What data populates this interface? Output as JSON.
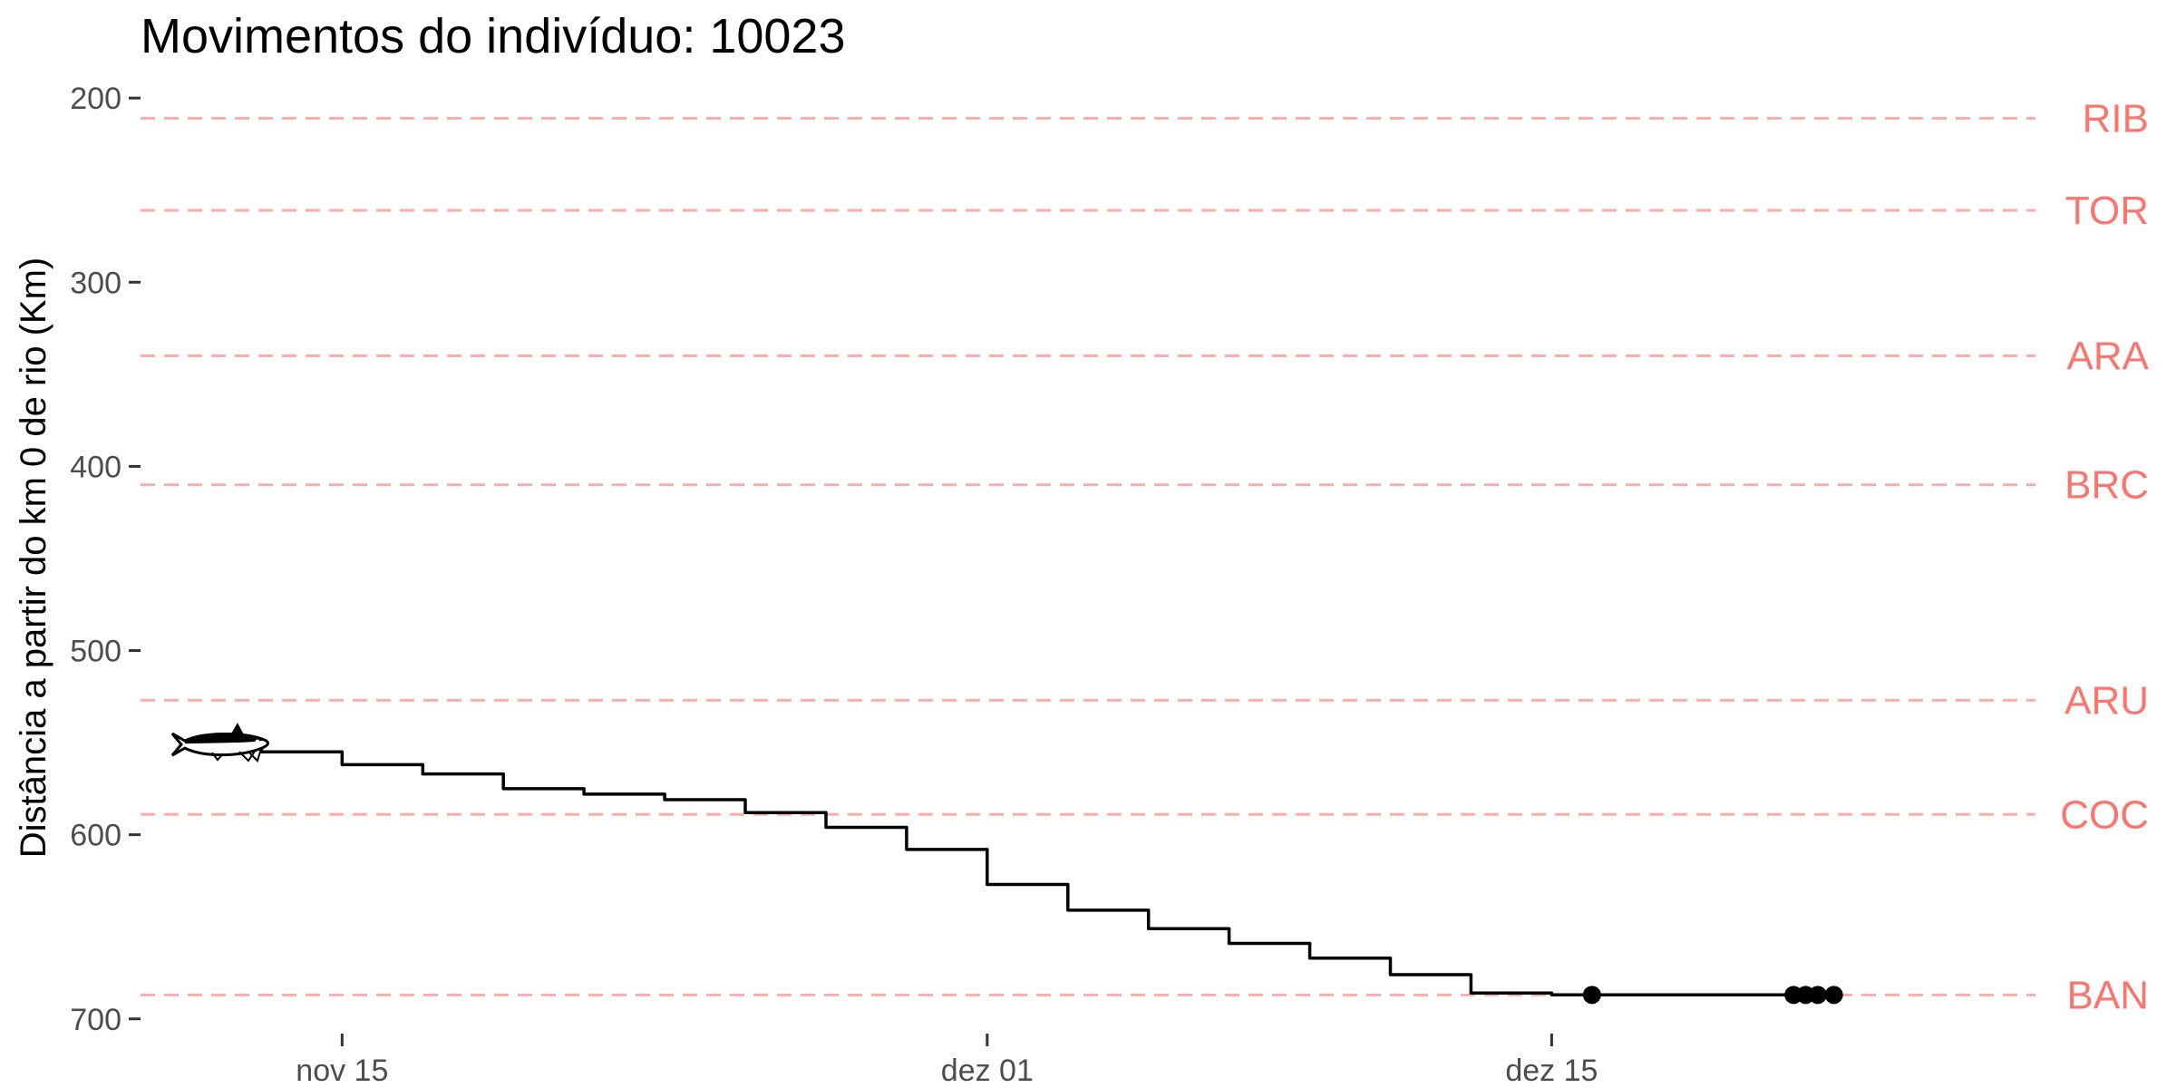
{
  "chart_data": {
    "type": "line",
    "title": "Movimentos do indivíduo: 10023",
    "xlabel": "",
    "ylabel": "Distância a partir do km 0 de rio (Km)",
    "x_tick_labels": [
      "nov 15",
      "dez 01",
      "dez 15"
    ],
    "x_tick_dates": [
      "2020-11-15",
      "2020-12-01",
      "2020-12-15"
    ],
    "xlim": [
      "2020-11-10",
      "2020-12-27"
    ],
    "y_ticks": [
      200,
      300,
      400,
      500,
      600,
      700
    ],
    "ylim": [
      195,
      708
    ],
    "y_reversed": true,
    "grid": false,
    "station_color": "#F8766D",
    "line_color": "#000000",
    "stations": [
      {
        "name": "RIB",
        "km": 211
      },
      {
        "name": "TOR",
        "km": 261
      },
      {
        "name": "ARA",
        "km": 340
      },
      {
        "name": "BRC",
        "km": 410
      },
      {
        "name": "ARU",
        "km": 527
      },
      {
        "name": "COC",
        "km": 589
      },
      {
        "name": "BAN",
        "km": 687
      }
    ],
    "series": [
      {
        "values": [
          {
            "x": "2020-11-12",
            "y": 551
          },
          {
            "x": "2020-11-14",
            "y": 555
          },
          {
            "x": "2020-11-16",
            "y": 562
          },
          {
            "x": "2020-11-18",
            "y": 567
          },
          {
            "x": "2020-11-20",
            "y": 575
          },
          {
            "x": "2020-11-22",
            "y": 578
          },
          {
            "x": "2020-11-24",
            "y": 581
          },
          {
            "x": "2020-11-26",
            "y": 588
          },
          {
            "x": "2020-11-28",
            "y": 596
          },
          {
            "x": "2020-11-30",
            "y": 608
          },
          {
            "x": "2020-12-02",
            "y": 627
          },
          {
            "x": "2020-12-04",
            "y": 641
          },
          {
            "x": "2020-12-06",
            "y": 651
          },
          {
            "x": "2020-12-08",
            "y": 659
          },
          {
            "x": "2020-12-10",
            "y": 667
          },
          {
            "x": "2020-12-12",
            "y": 676
          },
          {
            "x": "2020-12-14",
            "y": 686
          },
          {
            "x": "2020-12-16",
            "y": 687
          },
          {
            "x": "2020-12-21",
            "y": 687
          },
          {
            "x": "2020-12-22",
            "y": 687
          }
        ]
      }
    ],
    "points": [
      {
        "x": "2020-12-16",
        "y": 687
      },
      {
        "x": "2020-12-21",
        "y": 687
      },
      {
        "x": "2020-12-21.3",
        "y": 687
      },
      {
        "x": "2020-12-21.6",
        "y": 687
      },
      {
        "x": "2020-12-22",
        "y": 687
      }
    ],
    "start_marker": {
      "icon": "fish-icon",
      "x": "2020-11-12",
      "y": 551
    }
  }
}
